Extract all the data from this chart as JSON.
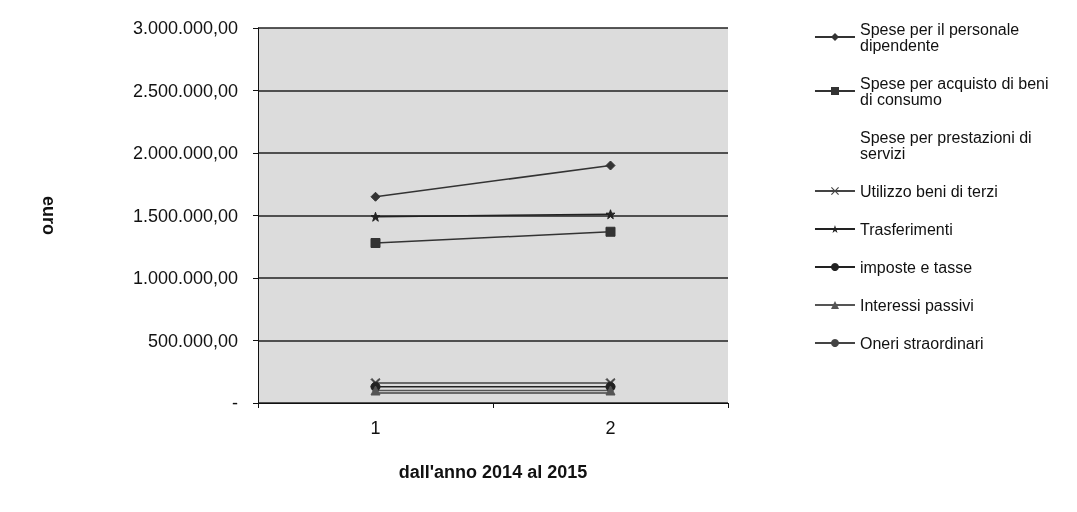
{
  "chart_data": {
    "type": "line",
    "xlabel": "dall'anno 2014 al 2015",
    "ylabel": "euro",
    "categories": [
      "1",
      "2"
    ],
    "ylim": [
      0,
      3000000
    ],
    "yticks": [
      {
        "value": 0,
        "label": "-"
      },
      {
        "value": 500000,
        "label": "500.000,00"
      },
      {
        "value": 1000000,
        "label": "1.000.000,00"
      },
      {
        "value": 1500000,
        "label": "1.500.000,00"
      },
      {
        "value": 2000000,
        "label": "2.000.000,00"
      },
      {
        "value": 2500000,
        "label": "2.500.000,00"
      },
      {
        "value": 3000000,
        "label": "3.000.000,00"
      }
    ],
    "grid": "y",
    "legend": "right",
    "series": [
      {
        "name": "Spese per il personale dipendente",
        "color": "#333333",
        "marker": "diamond",
        "values": [
          1650000,
          1900000
        ]
      },
      {
        "name": "Spese per acquisto di beni di consumo",
        "color": "#333333",
        "marker": "square",
        "values": [
          1280000,
          1370000
        ]
      },
      {
        "name": "Spese per prestazioni di servizi",
        "marker": "none",
        "values": [
          null,
          null
        ]
      },
      {
        "name": "Utilizzo beni di terzi",
        "color": "#444444",
        "marker": "cross",
        "values": [
          160000,
          160000
        ]
      },
      {
        "name": "Trasferimenti",
        "color": "#222222",
        "marker": "star",
        "values": [
          1490000,
          1510000
        ]
      },
      {
        "name": "imposte e tasse",
        "color": "#222222",
        "marker": "circle",
        "values": [
          130000,
          130000
        ]
      },
      {
        "name": "Interessi passivi",
        "color": "#555555",
        "marker": "triangle",
        "values": [
          100000,
          100000
        ]
      },
      {
        "name": "Oneri straordinari",
        "color": "#444444",
        "marker": "none",
        "values": [
          80000,
          80000
        ]
      }
    ]
  }
}
